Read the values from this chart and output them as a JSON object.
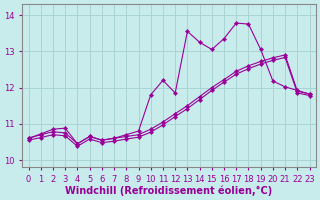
{
  "background_color": "#c8ecec",
  "grid_color": "#aad4d4",
  "line_color": "#990099",
  "xlabel": "Windchill (Refroidissement éolien,°C)",
  "xlim": [
    -0.5,
    23.5
  ],
  "ylim": [
    9.8,
    14.3
  ],
  "yticks": [
    10,
    11,
    12,
    13,
    14
  ],
  "xticks": [
    0,
    1,
    2,
    3,
    4,
    5,
    6,
    7,
    8,
    9,
    10,
    11,
    12,
    13,
    14,
    15,
    16,
    17,
    18,
    19,
    20,
    21,
    22,
    23
  ],
  "series1_x": [
    0,
    1,
    2,
    3,
    4,
    5,
    6,
    7,
    8,
    9,
    10,
    11,
    12,
    13,
    14,
    15,
    16,
    17,
    18,
    19,
    20,
    21,
    22,
    23
  ],
  "series1_y": [
    10.6,
    10.7,
    10.78,
    10.75,
    10.45,
    10.65,
    10.55,
    10.6,
    10.65,
    10.7,
    10.85,
    11.05,
    11.28,
    11.5,
    11.75,
    12.0,
    12.22,
    12.45,
    12.6,
    12.72,
    12.82,
    12.9,
    11.9,
    11.82
  ],
  "series2_x": [
    0,
    1,
    2,
    3,
    4,
    5,
    6,
    7,
    8,
    9,
    10,
    11,
    12,
    13,
    14,
    15,
    16,
    17,
    18,
    19,
    20,
    21,
    22,
    23
  ],
  "series2_y": [
    10.55,
    10.62,
    10.7,
    10.67,
    10.38,
    10.58,
    10.48,
    10.52,
    10.58,
    10.63,
    10.77,
    10.97,
    11.2,
    11.42,
    11.67,
    11.92,
    12.15,
    12.37,
    12.52,
    12.65,
    12.75,
    12.83,
    11.85,
    11.78
  ],
  "series3_x": [
    0,
    1,
    2,
    3,
    4,
    5,
    6,
    7,
    8,
    9,
    10,
    11,
    12,
    13,
    14,
    15,
    16,
    17,
    18,
    19,
    20,
    21,
    22,
    23
  ],
  "series3_y": [
    10.6,
    10.72,
    10.85,
    10.88,
    10.45,
    10.65,
    10.55,
    10.6,
    10.7,
    10.8,
    11.8,
    12.2,
    11.85,
    13.55,
    13.25,
    13.05,
    13.35,
    13.78,
    13.75,
    13.05,
    12.18,
    12.02,
    11.92,
    11.82
  ],
  "xlabel_fontsize": 7,
  "tick_fontsize": 6,
  "linewidth": 0.8,
  "markersize": 2.2
}
